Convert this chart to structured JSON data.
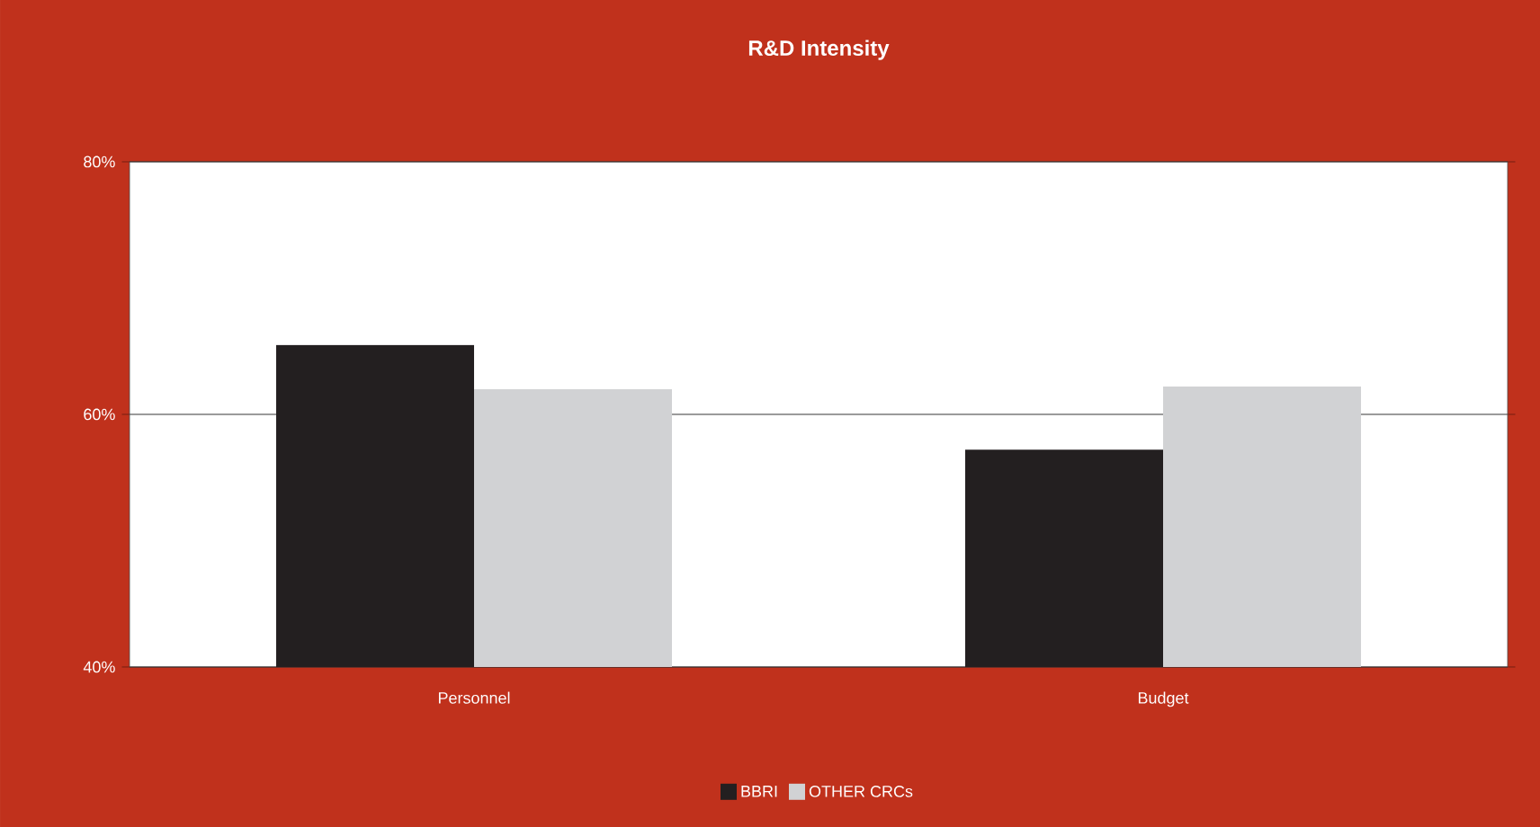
{
  "chart_data": {
    "type": "bar",
    "title": "R&D Intensity",
    "categories": [
      "Personnel",
      "Budget"
    ],
    "series": [
      {
        "name": "BBRI",
        "color": "#231f20",
        "values": [
          65.5,
          57.2
        ]
      },
      {
        "name": "OTHER CRCs",
        "color": "#d1d2d4",
        "values": [
          62.0,
          62.2
        ]
      }
    ],
    "ylim": [
      40,
      80
    ],
    "yticks": [
      {
        "value": 40,
        "label": "40%"
      },
      {
        "value": 60,
        "label": "60%"
      },
      {
        "value": 80,
        "label": "80%"
      }
    ],
    "grid": "y",
    "legend": "bottom"
  }
}
